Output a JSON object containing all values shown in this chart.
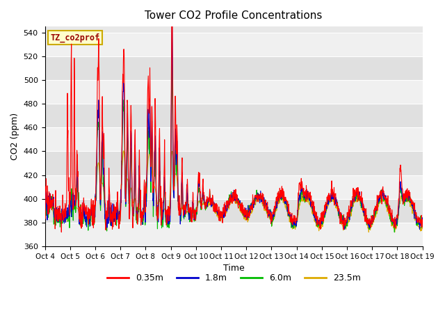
{
  "title": "Tower CO2 Profile Concentrations",
  "xlabel": "Time",
  "ylabel": "CO2 (ppm)",
  "ylim": [
    360,
    545
  ],
  "yticks": [
    360,
    380,
    400,
    420,
    440,
    460,
    480,
    500,
    520,
    540
  ],
  "x_labels": [
    "Oct 4",
    "Oct 5",
    "Oct 6",
    "Oct 7",
    "Oct 8",
    "Oct 9",
    "Oct 10",
    "Oct 11",
    "Oct 12",
    "Oct 13",
    "Oct 14",
    "Oct 15",
    "Oct 16",
    "Oct 17",
    "Oct 18",
    "Oct 19"
  ],
  "colors": {
    "0.35m": "#FF0000",
    "1.8m": "#0000CC",
    "6.0m": "#00BB00",
    "23.5m": "#DDAA00"
  },
  "legend_label": "TZ_co2prof",
  "legend_bg": "#FFFFCC",
  "legend_border": "#CCAA00",
  "bg_color": "#E8E8E8",
  "series_labels": [
    "0.35m",
    "1.8m",
    "6.0m",
    "23.5m"
  ],
  "line_width": 0.8,
  "n_days": 15,
  "pts_per_day": 96
}
